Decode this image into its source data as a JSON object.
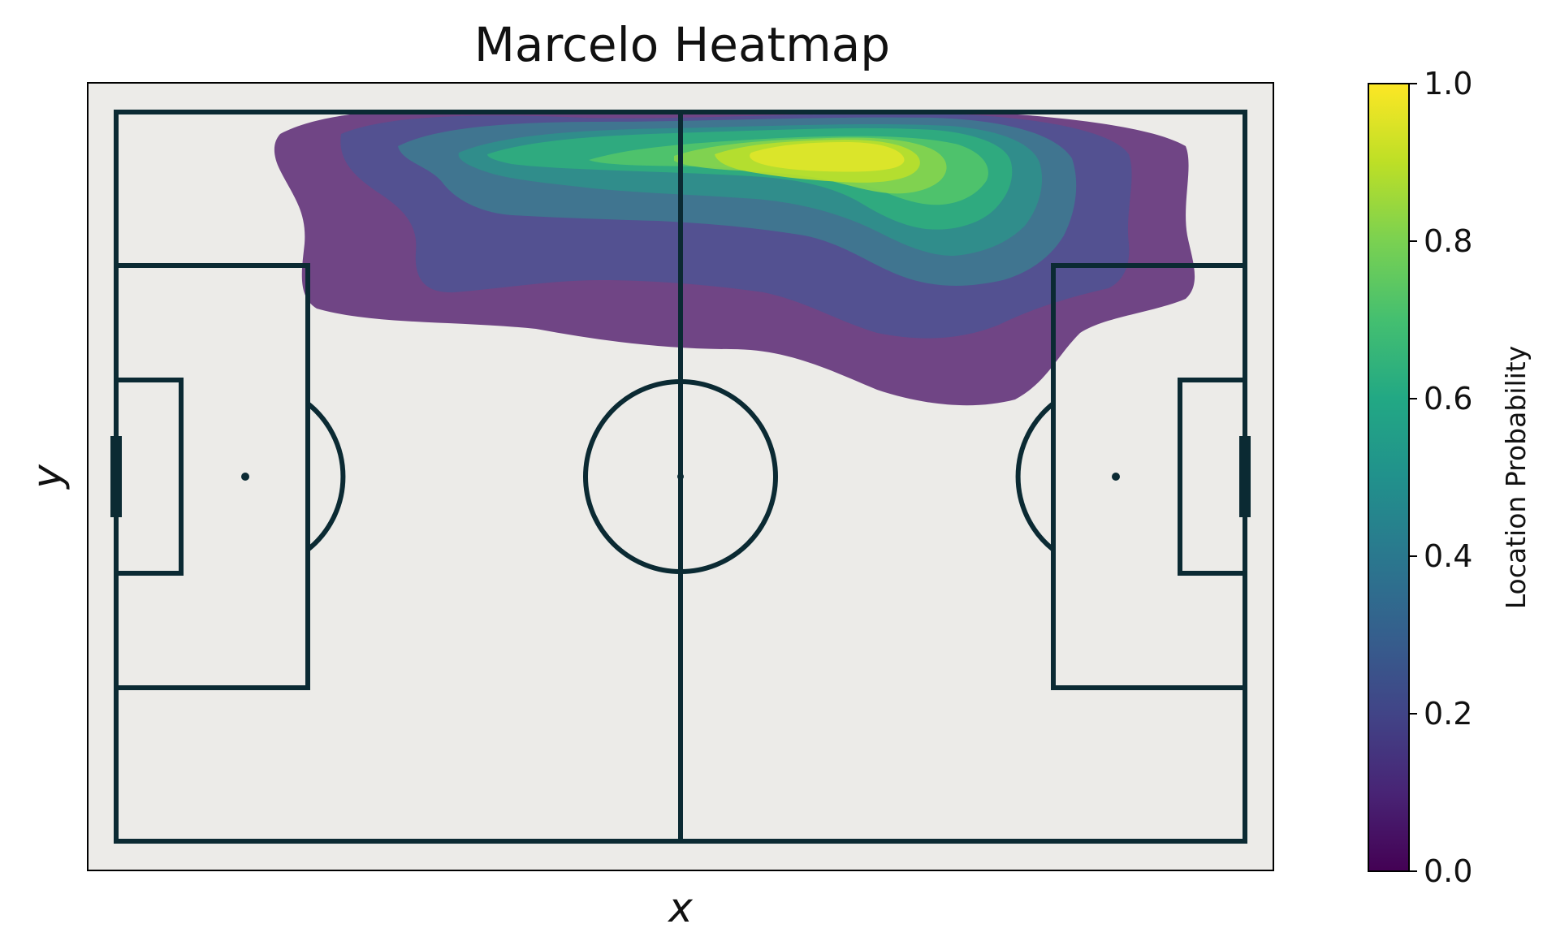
{
  "chart_data": {
    "type": "heatmap",
    "title": "Marcelo Heatmap",
    "xlabel": "x",
    "ylabel": "y",
    "colorbar": {
      "label": "Location Probability",
      "range": [
        0.0,
        1.0
      ],
      "ticks": [
        "0.0",
        "0.2",
        "0.4",
        "0.6",
        "0.8",
        "1.0"
      ],
      "colormap": "viridis"
    },
    "pitch": {
      "background": "#ecebe8",
      "line_color": "#0b2a33"
    },
    "density_levels": [
      0.1,
      0.2,
      0.3,
      0.4,
      0.5,
      0.6,
      0.7,
      0.8,
      0.9
    ],
    "hotspot": "attacking left flank, centred just past the halfway line",
    "grid": false
  }
}
